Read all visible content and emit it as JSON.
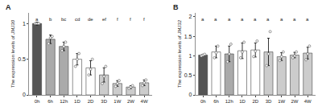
{
  "chart_data": [
    {
      "type": "bar",
      "title": "A",
      "y_label": "The expression levels of JMJ30",
      "categories": [
        "0h",
        "6h",
        "12h",
        "1D",
        "2D",
        "3D",
        "1W",
        "2W",
        "4W"
      ],
      "values": [
        1.0,
        0.78,
        0.68,
        0.5,
        0.38,
        0.28,
        0.16,
        0.11,
        0.17
      ],
      "colors": [
        "#555555",
        "#aaaaaa",
        "#aaaaaa",
        "#ffffff",
        "#ffffff",
        "#cccccc",
        "#cccccc",
        "#cccccc",
        "#cccccc"
      ],
      "errors": [
        0.02,
        0.06,
        0.06,
        0.08,
        0.1,
        0.1,
        0.04,
        0.02,
        0.04
      ],
      "points": [
        [
          1.0,
          1.0,
          1.0
        ],
        [
          0.72,
          0.8,
          0.82
        ],
        [
          0.62,
          0.68,
          0.74
        ],
        [
          0.4,
          0.5,
          0.58
        ],
        [
          0.28,
          0.36,
          0.5
        ],
        [
          0.16,
          0.26,
          0.4
        ],
        [
          0.12,
          0.16,
          0.2
        ],
        [
          0.09,
          0.11,
          0.13
        ],
        [
          0.13,
          0.17,
          0.21
        ]
      ],
      "annotations": [
        "a",
        "b",
        "bc",
        "cd",
        "de",
        "ef",
        "f",
        "f",
        "f"
      ],
      "ylim": [
        0.0,
        1.15
      ],
      "yticks": [
        0,
        0.5,
        1
      ],
      "grid": false
    },
    {
      "type": "bar",
      "title": "B",
      "y_label": "The expression levels of JMJ32",
      "categories": [
        "0h",
        "6h",
        "12h",
        "1D",
        "2D",
        "3D",
        "1W",
        "2W",
        "4W"
      ],
      "values": [
        1.02,
        1.1,
        1.05,
        1.13,
        1.15,
        1.1,
        0.98,
        1.02,
        1.07
      ],
      "colors": [
        "#555555",
        "#ffffff",
        "#aaaaaa",
        "#ffffff",
        "#ffffff",
        "#cccccc",
        "#cccccc",
        "#cccccc",
        "#cccccc"
      ],
      "errors": [
        0.02,
        0.15,
        0.2,
        0.2,
        0.18,
        0.35,
        0.1,
        0.07,
        0.15
      ],
      "points": [
        [
          1.0,
          1.02,
          1.04
        ],
        [
          0.95,
          1.08,
          1.25
        ],
        [
          0.85,
          1.05,
          1.3
        ],
        [
          0.95,
          1.1,
          1.35
        ],
        [
          0.98,
          1.12,
          1.38
        ],
        [
          0.75,
          1.05,
          1.62
        ],
        [
          0.88,
          0.98,
          1.1
        ],
        [
          0.95,
          1.0,
          1.1
        ],
        [
          0.9,
          1.05,
          1.25
        ]
      ],
      "annotations": [
        "a",
        "a",
        "a",
        "a",
        "a",
        "a",
        "a",
        "a",
        "a"
      ],
      "ylim": [
        0.0,
        2.1
      ],
      "yticks": [
        0,
        0.5,
        1,
        1.5,
        2
      ],
      "grid": false
    }
  ]
}
